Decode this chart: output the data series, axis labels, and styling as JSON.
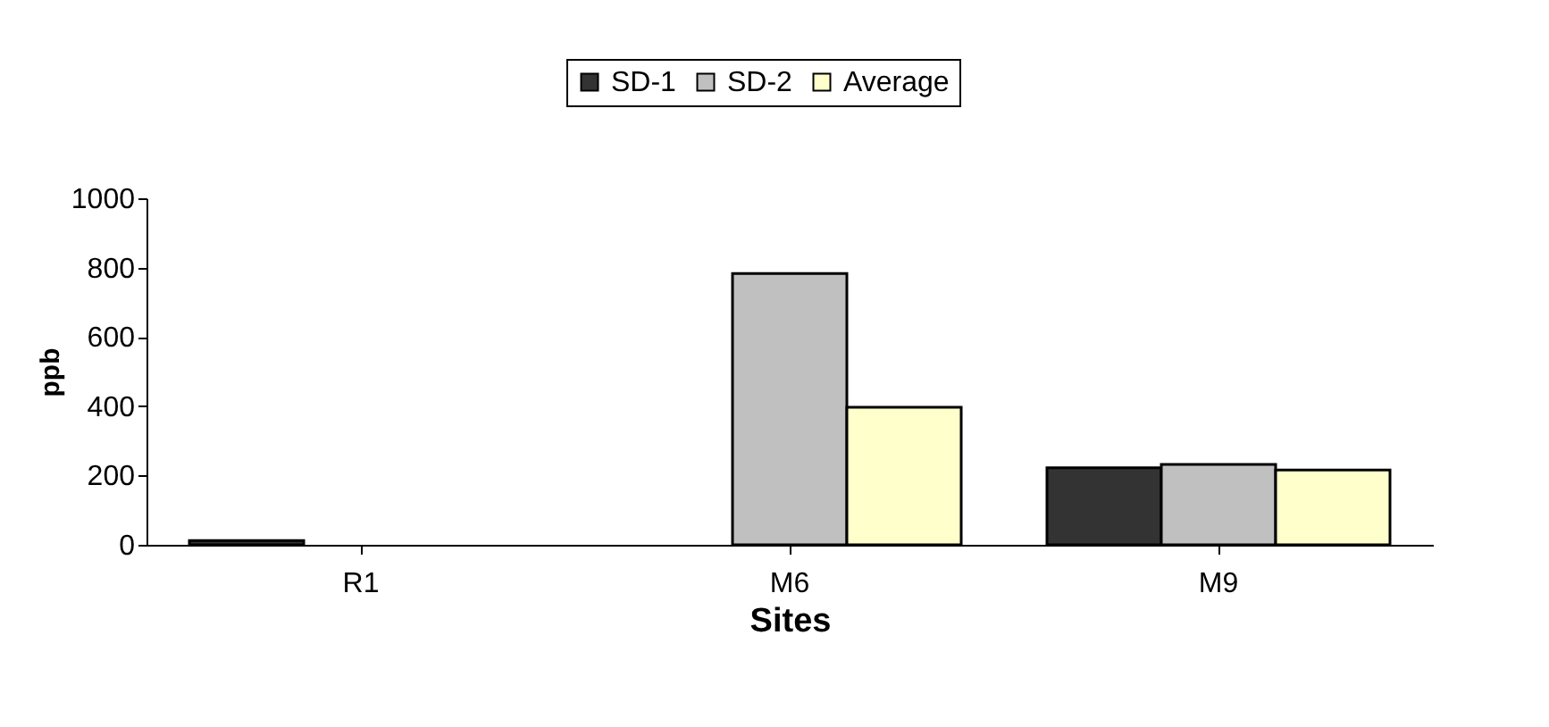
{
  "chart_data": {
    "type": "bar",
    "xlabel": "Sites",
    "ylabel": "ppb",
    "categories": [
      "R1",
      "M6",
      "M9"
    ],
    "series": [
      {
        "name": "SD-1",
        "color": "#333333",
        "values": [
          12,
          null,
          222
        ]
      },
      {
        "name": "SD-2",
        "color": "#c0c0c0",
        "values": [
          null,
          783,
          232
        ]
      },
      {
        "name": "Average",
        "color": "#ffffcc",
        "values": [
          null,
          397,
          216
        ]
      }
    ],
    "ylim": [
      0,
      1000
    ],
    "yticks": [
      0,
      200,
      400,
      600,
      800,
      1000
    ],
    "grid": false,
    "legend": "top"
  }
}
